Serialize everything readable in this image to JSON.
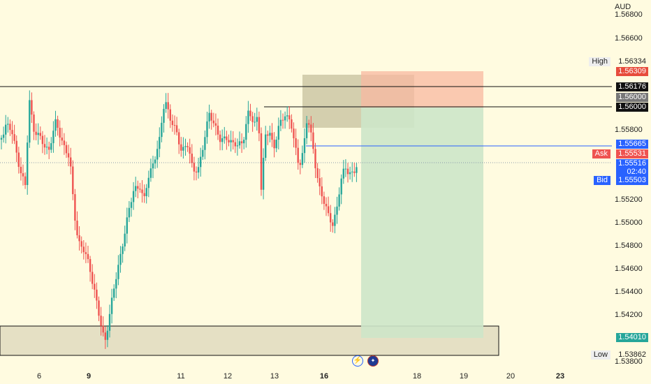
{
  "currency": "AUD",
  "price_axis": [
    "1.56800",
    "1.56600",
    "1.55800",
    "1.55200",
    "1.55000",
    "1.54800",
    "1.54600",
    "1.54400",
    "1.54200",
    "1.53800"
  ],
  "price_tags": {
    "high_label": "High",
    "high_value": "1.56334",
    "red_value": "1.56309",
    "black1": "1.56176",
    "gray": "1.56000",
    "black2": "1.56000",
    "blue": "1.55665",
    "ask_label": "Ask",
    "ask_value": "1.55531",
    "last_value": "1.55516",
    "countdown": "02:40",
    "bid_label": "Bid",
    "bid_value": "1.55503",
    "green_value": "1.54010",
    "low_label": "Low",
    "low_value": "1.53862"
  },
  "date_axis": [
    {
      "label": "6",
      "bold": false
    },
    {
      "label": "9",
      "bold": true
    },
    {
      "label": "11",
      "bold": false
    },
    {
      "label": "12",
      "bold": false
    },
    {
      "label": "13",
      "bold": false
    },
    {
      "label": "16",
      "bold": true
    },
    {
      "label": "18",
      "bold": false
    },
    {
      "label": "19",
      "bold": false
    },
    {
      "label": "20",
      "bold": false
    },
    {
      "label": "23",
      "bold": true
    }
  ],
  "colors": {
    "up": "#26a69a",
    "down": "#ef5350",
    "background": "#fffbe0",
    "stop_zone": "#f8c0a8",
    "target_zone": "#cce6cc",
    "supply_zone": "#cfcaa8",
    "demand_zone": "#e5e0c4",
    "hline": "#2962ff"
  },
  "icons": [
    "lightning-icon",
    "australia-flag-icon"
  ]
}
